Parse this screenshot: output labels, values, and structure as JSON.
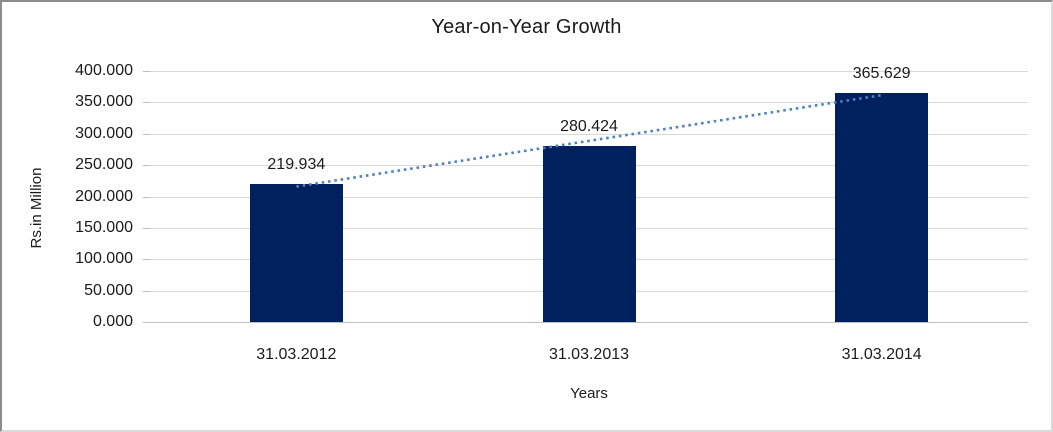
{
  "chart_data": {
    "type": "bar",
    "title": "Year-on-Year Growth",
    "xlabel": "Years",
    "ylabel": "Rs.in Million",
    "categories": [
      "31.03.2012",
      "31.03.2013",
      "31.03.2014"
    ],
    "values": [
      219.934,
      280.424,
      365.629
    ],
    "data_labels": [
      "219.934",
      "280.424",
      "365.629"
    ],
    "ylim": [
      0,
      400
    ],
    "ytick_step": 50,
    "ytick_labels": [
      "0.000",
      "50.000",
      "100.000",
      "150.000",
      "200.000",
      "250.000",
      "300.000",
      "350.000",
      "400.000"
    ],
    "grid": true,
    "legend": "none",
    "colors": {
      "bar": "#01215e",
      "gridline": "#d9d9d9",
      "axis": "#bfbfbf",
      "trendline": "#4f81bd",
      "text": "#1a1a1a"
    },
    "trendline": {
      "type": "linear",
      "style": "dotted"
    }
  }
}
